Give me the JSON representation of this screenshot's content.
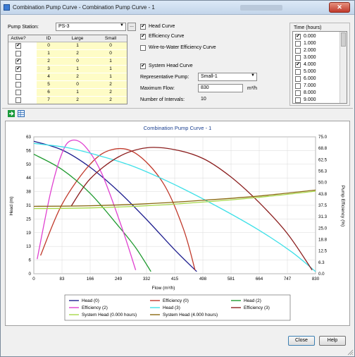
{
  "window": {
    "title": "Combination Pump Curve - Combination Pump Curve - 1",
    "close_glyph": "✕"
  },
  "station": {
    "label": "Pump Station:",
    "value": "PS-3",
    "browse_label": "..."
  },
  "grid": {
    "headers": [
      "Active?",
      "ID",
      "Large",
      "Small"
    ],
    "rows": [
      {
        "active": true,
        "id": "0",
        "large": "1",
        "small": "0"
      },
      {
        "active": false,
        "id": "1",
        "large": "2",
        "small": "0"
      },
      {
        "active": true,
        "id": "2",
        "large": "0",
        "small": "1"
      },
      {
        "active": true,
        "id": "3",
        "large": "1",
        "small": "1"
      },
      {
        "active": false,
        "id": "4",
        "large": "2",
        "small": "1"
      },
      {
        "active": false,
        "id": "5",
        "large": "0",
        "small": "2"
      },
      {
        "active": false,
        "id": "6",
        "large": "1",
        "small": "2"
      },
      {
        "active": false,
        "id": "7",
        "large": "2",
        "small": "2"
      }
    ]
  },
  "options": {
    "head_curve": {
      "label": "Head Curve",
      "checked": true
    },
    "efficiency_curve": {
      "label": "Efficiency Curve",
      "checked": true
    },
    "wire_to_water": {
      "label": "Wire-to-Water Efficiency Curve",
      "checked": false
    },
    "system_head_curve": {
      "label": "System Head Curve",
      "checked": true
    },
    "rep_pump_label": "Representative Pump:",
    "rep_pump_value": "Small-1",
    "max_flow_label": "Maximum Flow:",
    "max_flow_value": "830",
    "max_flow_unit": "m³/h",
    "intervals_label": "Number of Intervals:",
    "intervals_value": "10"
  },
  "time": {
    "label": "Time (hours)",
    "items": [
      {
        "label": "0.000",
        "checked": true
      },
      {
        "label": "1.000",
        "checked": false
      },
      {
        "label": "2.000",
        "checked": false
      },
      {
        "label": "3.000",
        "checked": false
      },
      {
        "label": "4.000",
        "checked": true
      },
      {
        "label": "5.000",
        "checked": false
      },
      {
        "label": "6.000",
        "checked": false
      },
      {
        "label": "7.000",
        "checked": false
      },
      {
        "label": "8.000",
        "checked": false
      },
      {
        "label": "9.000",
        "checked": false
      }
    ]
  },
  "toolbar": {
    "export_icon": "export-icon",
    "grid_icon": "table-icon"
  },
  "buttons": {
    "close": "Close",
    "help": "Help"
  },
  "colors": {
    "head0": "#1f1f8f",
    "eff0": "#c0392b",
    "head2": "#1f9a2f",
    "eff2": "#e040d0",
    "head3": "#3fe0e8",
    "eff3": "#8b1e1e",
    "sys0": "#a8d84a",
    "sys4": "#8a6a10"
  },
  "chart_data": {
    "type": "line",
    "title": "Combination Pump Curve - 1",
    "xlabel": "Flow (m³/h)",
    "ylabel": "Head (m)",
    "y2label": "Pump Efficiency (%)",
    "xlim": [
      0,
      830
    ],
    "ylim": [
      0,
      63
    ],
    "y2lim": [
      0,
      75
    ],
    "xticks": [
      "0",
      "83",
      "166",
      "249",
      "332",
      "415",
      "498",
      "581",
      "664",
      "747",
      "830"
    ],
    "yticks": [
      "0",
      "6",
      "13",
      "19",
      "25",
      "31",
      "38",
      "44",
      "50",
      "56",
      "63"
    ],
    "y2ticks": [
      "0.0",
      "6.3",
      "12.5",
      "18.8",
      "25.0",
      "31.3",
      "37.5",
      "43.8",
      "50.0",
      "56.3",
      "62.5",
      "68.8",
      "75.0"
    ],
    "grid": true,
    "legend_position": "bottom",
    "series": [
      {
        "name": "Head (0)",
        "axis": "left",
        "color": "#1f1f8f",
        "x": [
          0,
          83,
          166,
          249,
          332,
          415,
          480
        ],
        "y": [
          61,
          57,
          49,
          38,
          25,
          11,
          1
        ]
      },
      {
        "name": "Efficiency (0)",
        "axis": "right",
        "color": "#c0392b",
        "x": [
          20,
          83,
          166,
          230,
          300,
          380,
          440,
          475
        ],
        "y": [
          10,
          38,
          60,
          68,
          66,
          50,
          25,
          2
        ]
      },
      {
        "name": "Head (2)",
        "axis": "left",
        "color": "#1f9a2f",
        "x": [
          0,
          83,
          166,
          249,
          300,
          345
        ],
        "y": [
          55,
          48,
          37,
          22,
          12,
          1
        ]
      },
      {
        "name": "Efficiency (2)",
        "axis": "right",
        "color": "#e040d0",
        "x": [
          10,
          50,
          83,
          110,
          150,
          200,
          260,
          300
        ],
        "y": [
          8,
          45,
          66,
          73,
          70,
          55,
          25,
          2
        ]
      },
      {
        "name": "Head (3)",
        "axis": "left",
        "color": "#3fe0e8",
        "x": [
          0,
          100,
          200,
          300,
          415,
          540,
          664,
          760,
          830
        ],
        "y": [
          60,
          58,
          54,
          49,
          41,
          31,
          20,
          10,
          1
        ]
      },
      {
        "name": "Efficiency (3)",
        "axis": "right",
        "color": "#8b1e1e",
        "x": [
          110,
          166,
          249,
          332,
          415,
          500,
          581,
          664,
          747,
          820
        ],
        "y": [
          37,
          52,
          64,
          69,
          68,
          63,
          53,
          39,
          22,
          2
        ]
      },
      {
        "name": "System Head (0.000 hours)",
        "axis": "left",
        "color": "#a8d84a",
        "x": [
          0,
          166,
          332,
          498,
          664,
          830
        ],
        "y": [
          30,
          30.3,
          31.3,
          33,
          35.2,
          38
        ]
      },
      {
        "name": "System Head (4.000 hours)",
        "axis": "left",
        "color": "#8a6a10",
        "x": [
          0,
          166,
          332,
          498,
          664,
          830
        ],
        "y": [
          31,
          31.3,
          32.2,
          33.8,
          35.8,
          38.5
        ]
      }
    ],
    "legend": [
      {
        "label": "Head (0)",
        "color": "#1f1f8f"
      },
      {
        "label": "Efficiency (0)",
        "color": "#c0392b"
      },
      {
        "label": "Head (2)",
        "color": "#1f9a2f"
      },
      {
        "label": "Efficiency (2)",
        "color": "#e040d0"
      },
      {
        "label": "Head (3)",
        "color": "#3fe0e8"
      },
      {
        "label": "Efficiency (3)",
        "color": "#8b1e1e"
      },
      {
        "label": "System Head (0.000 hours)",
        "color": "#a8d84a"
      },
      {
        "label": "System Head (4.000 hours)",
        "color": "#8a6a10"
      }
    ]
  }
}
